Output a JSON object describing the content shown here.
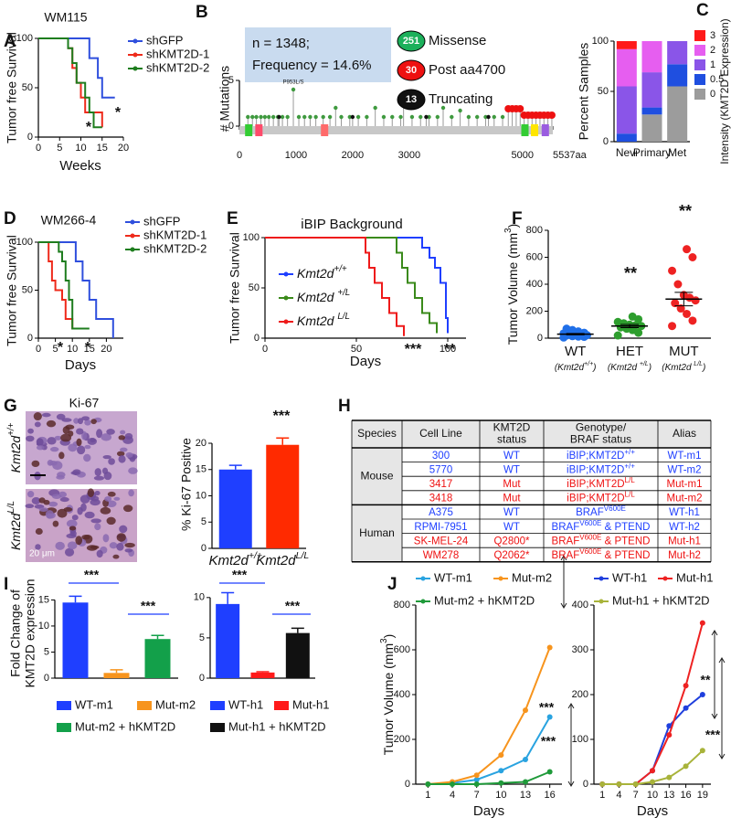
{
  "panel_labels": [
    "A",
    "B",
    "C",
    "D",
    "E",
    "F",
    "G",
    "H",
    "I",
    "J"
  ],
  "chart_data": [
    {
      "type": "line",
      "title": "WM115",
      "xlabel": "Weeks",
      "ylabel": "Tumor free Survival",
      "xlim": [
        0,
        20
      ],
      "ylim": [
        0,
        100
      ],
      "xticks": [
        0,
        5,
        10,
        15,
        20
      ],
      "yticks": [
        0,
        50,
        100
      ],
      "series": [
        {
          "name": "shGFP",
          "color": "#2f4fdd",
          "x": [
            0,
            12,
            12,
            14,
            14,
            15,
            15,
            18
          ],
          "values": [
            100,
            100,
            80,
            80,
            60,
            60,
            40,
            40
          ]
        },
        {
          "name": "shKMT2D-1",
          "color": "#ee2a1b",
          "x": [
            0,
            7,
            7,
            8,
            8,
            9,
            9,
            10,
            10,
            11,
            11,
            15,
            15
          ],
          "values": [
            100,
            100,
            90,
            90,
            70,
            70,
            55,
            55,
            40,
            40,
            25,
            25,
            10
          ]
        },
        {
          "name": "shKMT2D-2",
          "color": "#1e7d1e",
          "x": [
            0,
            7,
            7,
            8,
            8,
            9,
            9,
            11,
            11,
            12,
            12,
            13,
            13,
            15
          ],
          "values": [
            100,
            100,
            90,
            90,
            75,
            75,
            55,
            55,
            40,
            40,
            25,
            25,
            10,
            10
          ]
        }
      ],
      "annotations": [
        "*",
        "*"
      ]
    },
    {
      "type": "lollipop",
      "ylabel": "# Mutations",
      "xlim": [
        0,
        5537
      ],
      "ylim": [
        0,
        6
      ],
      "xticks": [
        0,
        1000,
        2000,
        3000,
        5000,
        {
          "value": 5537,
          "label": "5537aa"
        }
      ],
      "yticks": [
        0,
        5
      ],
      "info": [
        "n = 1348;",
        "Frequency = 14.6%"
      ],
      "annotations": [
        "P953L/S"
      ],
      "series": [
        {
          "name": "Missense",
          "count": 251,
          "color": "#1cb05b",
          "dot_color": "#3f9a3f",
          "x": [
            150,
            230,
            300,
            380,
            450,
            520,
            600,
            680,
            760,
            850,
            953,
            1050,
            1150,
            1250,
            1350,
            1480,
            1600,
            1700,
            1800,
            1950,
            2100,
            2250,
            2400,
            2550,
            2700,
            2850,
            2900,
            3050,
            3200,
            3350,
            3500,
            3600,
            3750,
            3900,
            4050,
            4200,
            4350,
            4500,
            4650
          ],
          "values": [
            1,
            1,
            1,
            1,
            1,
            1,
            1,
            1,
            1,
            1,
            4,
            1,
            1,
            1,
            1,
            1,
            1,
            2,
            1,
            1,
            1,
            1,
            2,
            1,
            1,
            1,
            2.5,
            1,
            1,
            1,
            1,
            2,
            1,
            1.7,
            1,
            1,
            1,
            1,
            1
          ]
        },
        {
          "name": "Post aa4700",
          "count": 30,
          "color": "#ee1111",
          "dot_color": "#ee1111",
          "x": [
            4750,
            4820,
            4890,
            4960,
            5030,
            5100,
            5170,
            5240,
            5310,
            5380,
            5450,
            5520
          ],
          "values": [
            1.9,
            1.9,
            1.9,
            1.9,
            1.2,
            1.2,
            1.2,
            1.2,
            1.2,
            1.2,
            1.2,
            1.2
          ]
        },
        {
          "name": "Truncating",
          "count": 13,
          "color": "#111111",
          "dot_color": "#111111",
          "x": [
            700,
            2000,
            3300,
            4400
          ],
          "values": [
            1,
            1,
            1,
            1
          ]
        }
      ]
    },
    {
      "type": "stacked_bar",
      "ylabel": "Percent Samples",
      "legend_title": "Intensity (KMT2D Expression)",
      "categories": [
        "Nevi",
        "Primary",
        "Met"
      ],
      "ylim": [
        0,
        100
      ],
      "yticks": [
        0,
        50,
        100
      ],
      "series": [
        {
          "name": "0",
          "color": "#9c9c9c",
          "values": [
            0,
            27,
            55
          ]
        },
        {
          "name": "0.5",
          "color": "#1f4fe0",
          "values": [
            8,
            7,
            22
          ]
        },
        {
          "name": "1",
          "color": "#8a55e8",
          "values": [
            47,
            35,
            23
          ]
        },
        {
          "name": "2",
          "color": "#e65ef0",
          "values": [
            37,
            31,
            0
          ]
        },
        {
          "name": "3",
          "color": "#ff1a1a",
          "values": [
            8,
            0,
            0
          ]
        }
      ]
    },
    {
      "type": "line",
      "title": "WM266-4",
      "xlabel": "Days",
      "ylabel": "Tumor free Survival",
      "xlim": [
        0,
        25
      ],
      "ylim": [
        0,
        100
      ],
      "xticks": [
        0,
        5,
        10,
        15,
        20
      ],
      "yticks": [
        0,
        50,
        100
      ],
      "series": [
        {
          "name": "shGFP",
          "color": "#2f4fdd",
          "x": [
            0,
            11,
            11,
            13,
            13,
            15,
            15,
            17,
            17,
            22,
            22
          ],
          "values": [
            100,
            100,
            80,
            80,
            60,
            60,
            40,
            40,
            20,
            20,
            0
          ]
        },
        {
          "name": "shKMT2D-1",
          "color": "#ee2a1b",
          "x": [
            0,
            3,
            3,
            4,
            4,
            5,
            5,
            7,
            7,
            8,
            8,
            10,
            10,
            13
          ],
          "values": [
            100,
            100,
            80,
            80,
            60,
            60,
            50,
            50,
            40,
            40,
            20,
            20,
            10,
            10
          ]
        },
        {
          "name": "shKMT2D-2",
          "color": "#1e7d1e",
          "x": [
            0,
            6,
            6,
            7,
            7,
            8,
            8,
            9,
            9,
            10,
            10,
            15
          ],
          "values": [
            100,
            100,
            90,
            90,
            80,
            80,
            60,
            60,
            40,
            40,
            10,
            10
          ]
        }
      ],
      "annotations": [
        "*",
        "*"
      ]
    },
    {
      "type": "line",
      "title": "iBIP Background",
      "xlabel": "Days",
      "ylabel": "Tumor free Survival",
      "xlim": [
        0,
        110
      ],
      "ylim": [
        0,
        100
      ],
      "xticks": [
        0,
        50,
        100
      ],
      "yticks": [
        0,
        50,
        100
      ],
      "series": [
        {
          "name": {
            "base": "Kmt2d",
            "sup": "+/+"
          },
          "color": "#1f3fff",
          "x": [
            0,
            86,
            86,
            90,
            90,
            93,
            93,
            96,
            96,
            99,
            99,
            100,
            100
          ],
          "values": [
            100,
            100,
            90,
            90,
            80,
            80,
            70,
            70,
            55,
            55,
            20,
            20,
            5
          ]
        },
        {
          "name": {
            "base": "Kmt2d ",
            "sup": "+/L"
          },
          "color": "#3a8a1a",
          "x": [
            0,
            72,
            72,
            75,
            75,
            78,
            78,
            82,
            82,
            86,
            86,
            90,
            90,
            94,
            94
          ],
          "values": [
            100,
            100,
            85,
            85,
            70,
            70,
            55,
            55,
            40,
            40,
            25,
            25,
            15,
            15,
            5
          ]
        },
        {
          "name": {
            "base": "Kmt2d ",
            "sup": "L/L"
          },
          "color": "#ee1a1a",
          "x": [
            0,
            55,
            55,
            57,
            57,
            60,
            60,
            64,
            64,
            68,
            68,
            72,
            72,
            76,
            76
          ],
          "values": [
            100,
            100,
            85,
            85,
            70,
            70,
            55,
            55,
            40,
            40,
            25,
            25,
            12,
            12,
            2
          ]
        }
      ],
      "annotations": [
        "***",
        "**"
      ]
    },
    {
      "type": "dot",
      "ylabel": {
        "base": "Tumor Volume (mm",
        "sup": "3",
        "rest": ")"
      },
      "categories": [
        "WT",
        "HET",
        "MUT"
      ],
      "sublabels": [
        {
          "base": "(Kmt2d",
          "sup": "+/+",
          "rest": ")"
        },
        {
          "base": "(Kmt2d ",
          "sup": "+/L",
          "rest": ")"
        },
        {
          "base": "(Kmt2d ",
          "sup": "L/L",
          "rest": ")"
        }
      ],
      "colors": [
        "#1f6fe8",
        "#2e9e2e",
        "#ee2222"
      ],
      "ylim": [
        0,
        800
      ],
      "yticks": [
        0,
        200,
        400,
        600,
        800
      ],
      "points": [
        [
          5,
          10,
          12,
          15,
          20,
          22,
          25,
          28,
          30,
          35,
          40,
          50,
          60,
          70
        ],
        [
          20,
          40,
          60,
          70,
          80,
          90,
          95,
          100,
          110,
          120,
          140,
          160
        ],
        [
          90,
          130,
          180,
          220,
          260,
          280,
          300,
          320,
          400,
          500,
          600,
          660
        ]
      ],
      "means": [
        30,
        90,
        290
      ],
      "sems": [
        5,
        12,
        50
      ],
      "annotations": [
        "**",
        "**"
      ]
    },
    {
      "type": "bar",
      "title": "Ki-67",
      "ylabel": "% Ki-67 Positive",
      "categories": [
        {
          "base": "Kmt2d",
          "sup": "+/+"
        },
        {
          "base": "Kmt2d",
          "sup": "L/L"
        }
      ],
      "values": [
        15,
        19.7
      ],
      "errors": [
        0.8,
        1.3
      ],
      "colors": [
        "#1f3fff",
        "#ff2a00"
      ],
      "ylim": [
        0,
        24
      ],
      "yticks": [
        0,
        5,
        10,
        15,
        20
      ],
      "annotations": [
        "***"
      ],
      "image_labels": [
        {
          "base": "Kmt2d",
          "sup": "+/+"
        },
        {
          "base": "Kmt2d",
          "sup": "L/L"
        }
      ],
      "scale_bar": "20 μm"
    },
    {
      "type": "bar",
      "ylabel": [
        "Fold Change of",
        "KMT2D expression"
      ],
      "categories": [
        "WT-m1",
        "Mut-m2",
        "Mut-m2 + hKMT2D"
      ],
      "values": [
        14.5,
        1,
        7.5
      ],
      "errors": [
        1.2,
        0.6,
        0.7
      ],
      "colors": [
        "#1f3fff",
        "#f7941d",
        "#13a04a"
      ],
      "ylim": [
        0,
        17
      ],
      "yticks": [
        0,
        5,
        10,
        15
      ],
      "annotations": [
        "***",
        "***"
      ]
    },
    {
      "type": "bar",
      "categories": [
        "WT-h1",
        "Mut-h1",
        "Mut-h1 + hKMT2D"
      ],
      "values": [
        9.2,
        0.7,
        5.6
      ],
      "errors": [
        1.4,
        0.1,
        0.6
      ],
      "colors": [
        "#1f3fff",
        "#ff1a1a",
        "#111111"
      ],
      "ylim": [
        0,
        11
      ],
      "yticks": [
        0,
        5,
        10
      ],
      "annotations": [
        "***",
        "***"
      ]
    },
    {
      "type": "line",
      "markers": true,
      "xlabel": "Days",
      "ylabel": {
        "base": "Tumor Volume (mm",
        "sup": "3",
        "rest": ")"
      },
      "x": [
        1,
        4,
        7,
        10,
        13,
        16
      ],
      "xlim": [
        -0.5,
        17.5
      ],
      "xticks": [
        1,
        4,
        7,
        10,
        13,
        16
      ],
      "ylim": [
        0,
        800
      ],
      "yticks": [
        0,
        200,
        400,
        600,
        800
      ],
      "series": [
        {
          "name": "WT-m1",
          "color": "#29a3e0",
          "values": [
            0,
            5,
            20,
            60,
            110,
            300
          ]
        },
        {
          "name": "Mut-m2",
          "color": "#f7941d",
          "values": [
            0,
            10,
            40,
            130,
            330,
            610
          ]
        },
        {
          "name": "Mut-m2 + hKMT2D",
          "color": "#1f9a3a",
          "values": [
            0,
            0,
            0,
            5,
            10,
            55
          ]
        }
      ],
      "annotations": [
        "***",
        "***"
      ]
    },
    {
      "type": "line",
      "markers": true,
      "xlabel": "Days",
      "x": [
        1,
        4,
        7,
        10,
        13,
        16,
        19
      ],
      "xlim": [
        -0.5,
        20.5
      ],
      "xticks": [
        1,
        4,
        7,
        10,
        13,
        16,
        19
      ],
      "ylim": [
        0,
        400
      ],
      "yticks": [
        0,
        100,
        200,
        300,
        400
      ],
      "series": [
        {
          "name": "WT-h1",
          "color": "#1f3fdd",
          "values": [
            0,
            0,
            0,
            30,
            130,
            170,
            200
          ]
        },
        {
          "name": "Mut-h1",
          "color": "#ee2222",
          "values": [
            0,
            0,
            0,
            30,
            110,
            220,
            360
          ]
        },
        {
          "name": "Mut-h1 + hKMT2D",
          "color": "#a8b33a",
          "values": [
            0,
            0,
            0,
            5,
            15,
            40,
            75
          ]
        }
      ],
      "annotations": [
        "**",
        "***"
      ]
    }
  ],
  "table": {
    "header": [
      [
        "Species"
      ],
      [
        "Cell Line"
      ],
      [
        "KMT2D",
        "status"
      ],
      [
        "Genotype/",
        "BRAF status"
      ],
      [
        "Alias"
      ]
    ],
    "groups": [
      {
        "species": "Mouse",
        "rows": [
          {
            "color": "#1f3fff",
            "cells": [
              "300",
              "WT",
              {
                "base": "iBIP;KMT2D",
                "sup": "+/+"
              },
              "WT-m1"
            ]
          },
          {
            "color": "#1f3fff",
            "cells": [
              "5770",
              "WT",
              {
                "base": "iBIP;KMT2D",
                "sup": "+/+"
              },
              "WT-m2"
            ]
          },
          {
            "color": "#ee1111",
            "cells": [
              "3417",
              "Mut",
              {
                "base": "iBIP;KMT2D",
                "sup": "L/L"
              },
              "Mut-m1"
            ]
          },
          {
            "color": "#ee1111",
            "cells": [
              "3418",
              "Mut",
              {
                "base": "iBIP;KMT2D",
                "sup": "L/L"
              },
              "Mut-m2"
            ]
          }
        ]
      },
      {
        "species": "Human",
        "rows": [
          {
            "color": "#1f3fff",
            "cells": [
              "A375",
              "WT",
              {
                "base": "BRAF",
                "sup": "V600E"
              },
              "WT-h1"
            ]
          },
          {
            "color": "#1f3fff",
            "cells": [
              "RPMI-7951",
              "WT",
              {
                "base": "BRAF",
                "sup": "V600E",
                "rest": " & PTEND"
              },
              "WT-h2"
            ]
          },
          {
            "color": "#ee1111",
            "cells": [
              "SK-MEL-24",
              "Q2800*",
              {
                "base": "BRAF",
                "sup": "V600E",
                "rest": " & PTEND"
              },
              "Mut-h1"
            ]
          },
          {
            "color": "#ee1111",
            "cells": [
              "WM278",
              "Q2062*",
              {
                "base": "BRAF",
                "sup": "V600E",
                "rest": " & PTEND"
              },
              "Mut-h2"
            ]
          }
        ]
      }
    ]
  }
}
